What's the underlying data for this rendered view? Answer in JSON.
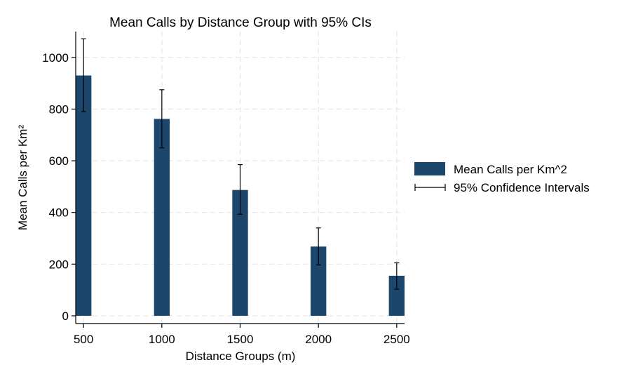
{
  "chart_data": {
    "type": "bar",
    "title": "Mean Calls by Distance Group with 95% CIs",
    "xlabel": "Distance Groups (m)",
    "ylabel": "Mean Calls per Km²",
    "categories": [
      "500",
      "1000",
      "1500",
      "2000",
      "2500"
    ],
    "x": [
      500,
      1000,
      1500,
      2000,
      2500
    ],
    "values": [
      930,
      762,
      487,
      268,
      155
    ],
    "ci_lower": [
      790,
      650,
      393,
      197,
      103
    ],
    "ci_upper": [
      1072,
      875,
      585,
      340,
      205
    ],
    "xlim": [
      450,
      2550
    ],
    "ylim": [
      -30,
      1100
    ],
    "yticks": [
      0,
      200,
      400,
      600,
      800,
      1000
    ],
    "xticks": [
      500,
      1000,
      1500,
      2000,
      2500
    ],
    "grid": true,
    "legend_position": "right",
    "legend": {
      "bar_label": "Mean Calls per Km^2",
      "ci_label": "95% Confidence Intervals"
    },
    "colors": {
      "bar": "#1c466c",
      "grid": "#e6e6e6",
      "axis": "#000000"
    }
  }
}
